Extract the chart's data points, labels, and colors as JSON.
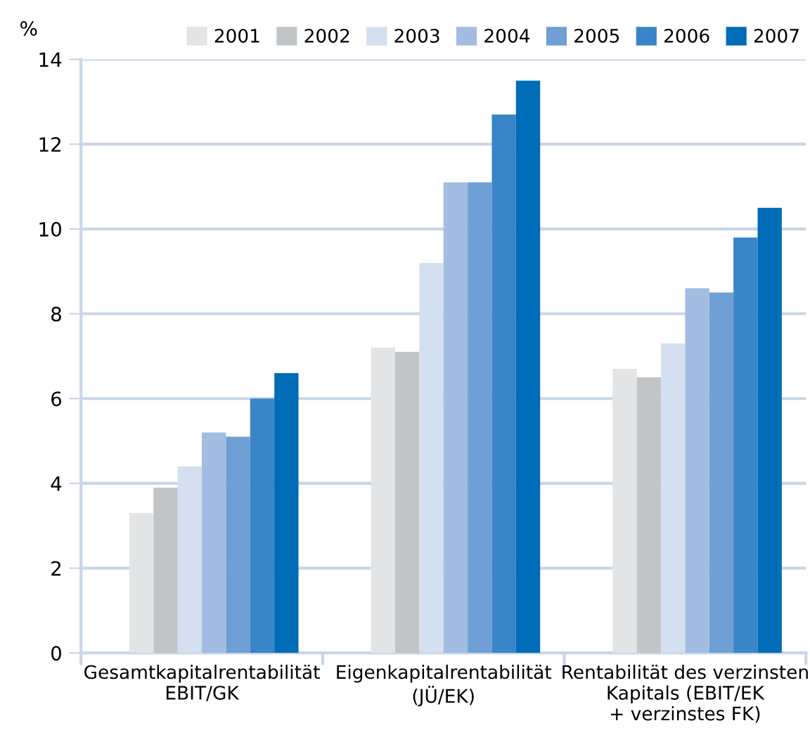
{
  "chart_data": {
    "type": "bar",
    "ylabel": "%",
    "categories": [
      "Gesamtkapitalrentabilität\nEBIT/GK",
      "Eigenkapitalrentabilität\n(JÜ/EK)",
      "Rentabilität des verzinsten\nKapitals (EBIT/EK\n+ verzinstes FK)"
    ],
    "series": [
      {
        "name": "2001",
        "color": "#e3e4e5",
        "values": [
          3.3,
          7.2,
          6.7
        ]
      },
      {
        "name": "2002",
        "color": "#c2c5c7",
        "values": [
          3.9,
          7.1,
          6.5
        ]
      },
      {
        "name": "2003",
        "color": "#d4dff0",
        "values": [
          4.4,
          9.2,
          7.3
        ]
      },
      {
        "name": "2004",
        "color": "#a3bce2",
        "values": [
          5.2,
          11.1,
          8.6
        ]
      },
      {
        "name": "2005",
        "color": "#6f9fd4",
        "values": [
          5.1,
          11.1,
          8.5
        ]
      },
      {
        "name": "2006",
        "color": "#3a84c8",
        "values": [
          6.0,
          12.7,
          9.8
        ]
      },
      {
        "name": "2007",
        "color": "#006cb8",
        "values": [
          6.6,
          13.5,
          10.5
        ]
      }
    ],
    "ylim": [
      0,
      14
    ],
    "yticks": [
      0,
      2,
      4,
      6,
      8,
      10,
      12,
      14
    ],
    "grid": "y",
    "legend": "top right"
  }
}
